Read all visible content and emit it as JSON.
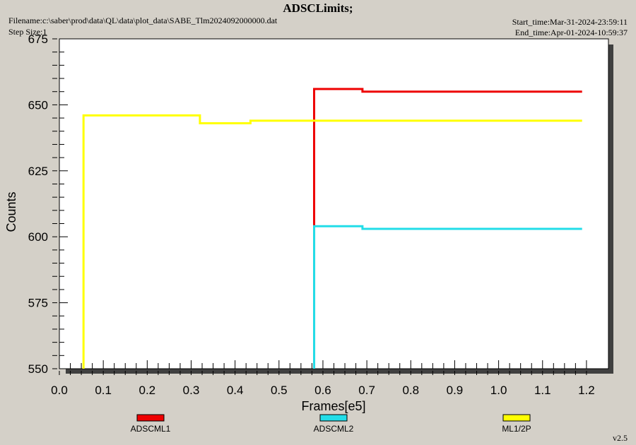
{
  "header": {
    "title": "ADSCLimits;",
    "filename": "Filename:c:\\saber\\prod\\data\\QL\\data\\plot_data\\SABE_Tlm2024092000000.dat",
    "step_size": "Step Size:1",
    "start_time": "Start_time:Mar-31-2024-23:59:11",
    "end_time": "End_time:Apr-01-2024-10:59:37",
    "version": "v2.5"
  },
  "chart_data": {
    "type": "line",
    "title": "ADSCLimits;",
    "xlabel": "Frames[e5]",
    "ylabel": "Counts",
    "xlim": [
      0.0,
      1.25
    ],
    "ylim": [
      550,
      675
    ],
    "x_ticks": [
      "0.0",
      "0.1",
      "0.2",
      "0.3",
      "0.4",
      "0.5",
      "0.6",
      "0.7",
      "0.8",
      "0.9",
      "1.0",
      "1.1",
      "1.2"
    ],
    "y_ticks": [
      "550",
      "575",
      "600",
      "625",
      "650",
      "675"
    ],
    "grid": false,
    "legend_position": "bottom",
    "series": [
      {
        "name": "ADSCML1",
        "color": "#ee0000",
        "step": true,
        "x": [
          0.58,
          0.58,
          0.69,
          1.19
        ],
        "y": [
          550,
          656,
          655,
          655
        ]
      },
      {
        "name": "ADSCML2",
        "color": "#22dde8",
        "step": true,
        "x": [
          0.58,
          0.58,
          0.69,
          1.19
        ],
        "y": [
          550,
          604,
          603,
          603
        ]
      },
      {
        "name": "ML1/2P",
        "color": "#ffff00",
        "step": true,
        "x": [
          0.055,
          0.055,
          0.32,
          0.435,
          1.19
        ],
        "y": [
          550,
          646,
          643,
          644,
          644
        ]
      }
    ]
  }
}
